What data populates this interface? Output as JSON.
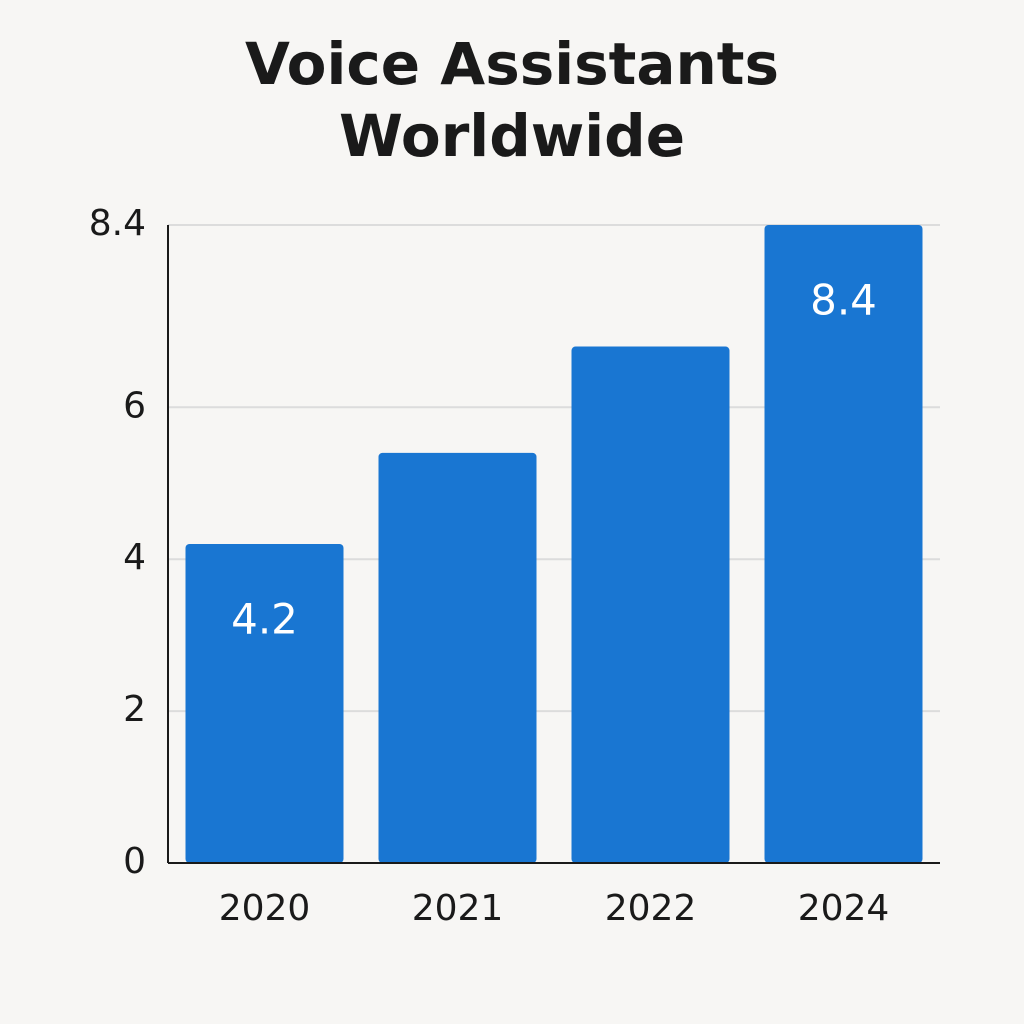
{
  "chart_data": {
    "type": "bar",
    "title": "Voice Assistants Worldwide",
    "categories": [
      "2020",
      "2021",
      "2022",
      "2024"
    ],
    "values": [
      4.2,
      5.4,
      6.8,
      8.4
    ],
    "value_labels": [
      "4.2",
      null,
      null,
      "8.4"
    ],
    "color": "#1976d2",
    "ylim": [
      0,
      8.4
    ],
    "yticks": [
      0,
      2,
      4,
      6,
      8.4
    ],
    "grid": true
  }
}
